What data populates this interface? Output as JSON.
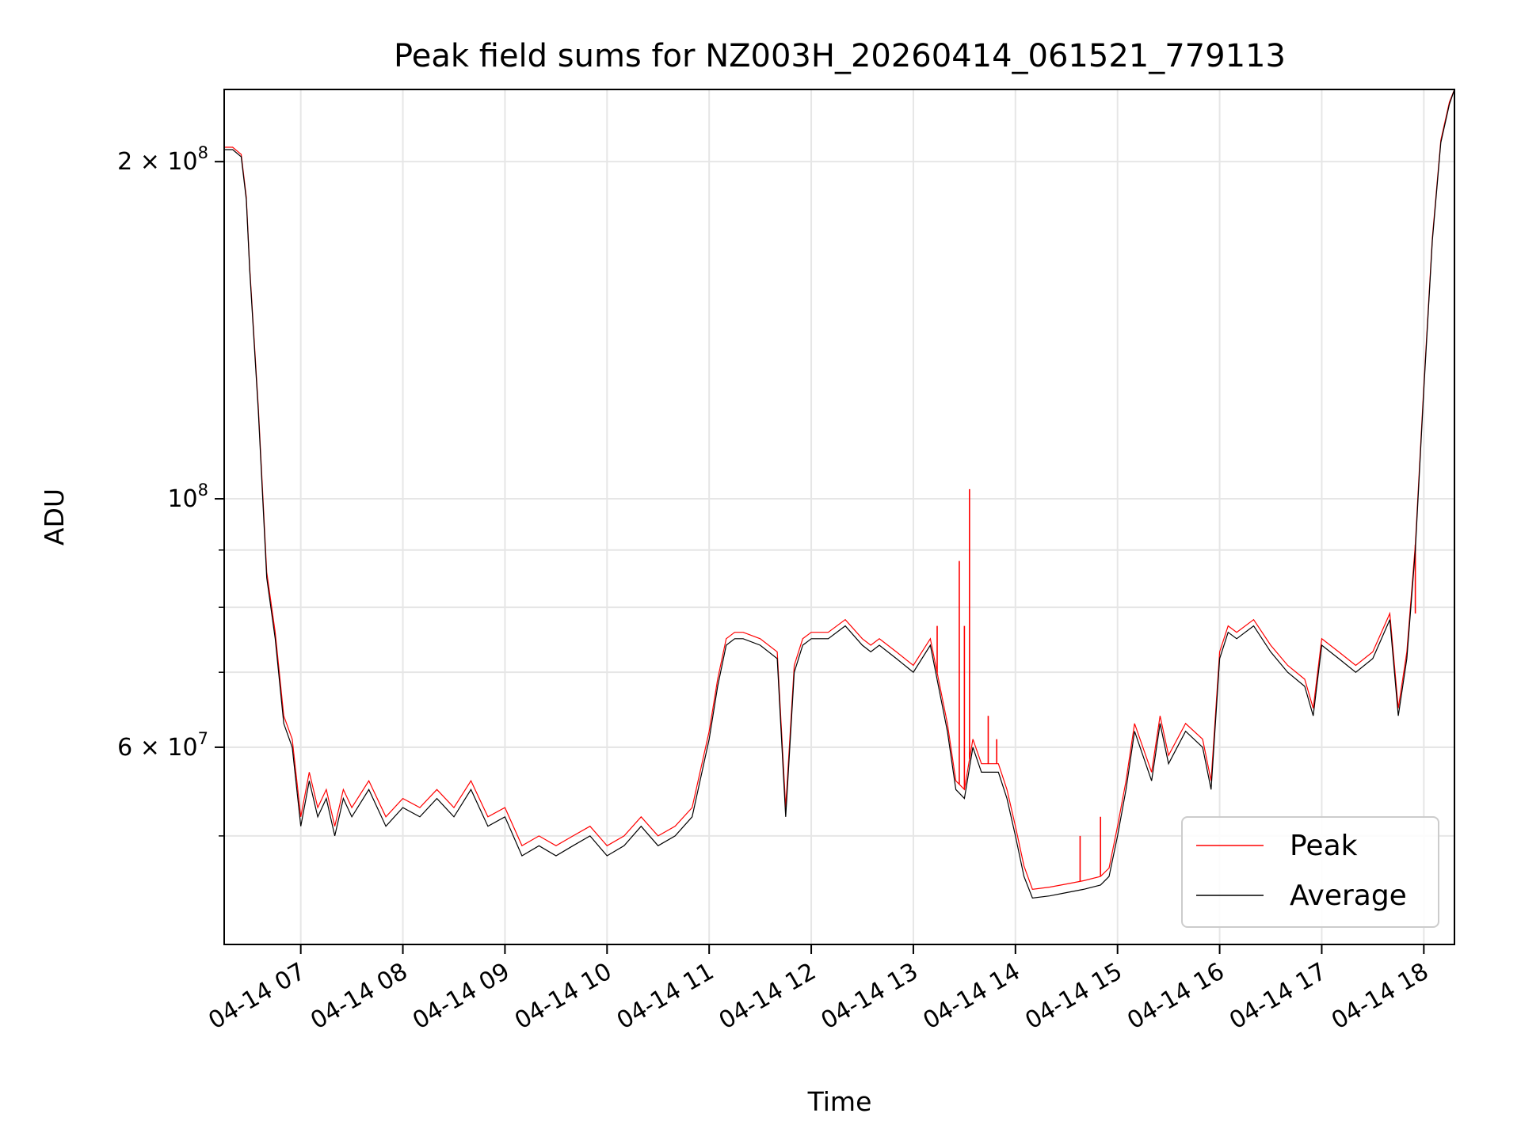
{
  "chart_data": {
    "type": "line",
    "title": "Peak field sums for NZ003H_20260414_061521_779113",
    "xlabel": "Time",
    "ylabel": "ADU",
    "yscale": "log",
    "ylim": [
      40000000,
      232000000
    ],
    "xlim": [
      "04-14 06:15",
      "04-14 18:18"
    ],
    "grid": true,
    "legend_position": "lower-right",
    "x_tick_labels": [
      "04-14 07",
      "04-14 08",
      "04-14 09",
      "04-14 10",
      "04-14 11",
      "04-14 12",
      "04-14 13",
      "04-14 14",
      "04-14 15",
      "04-14 16",
      "04-14 17",
      "04-14 18"
    ],
    "y_tick_labels": [
      {
        "value": 200000000,
        "base": "2 × 10",
        "exp": "8"
      },
      {
        "value": 100000000,
        "base": "10",
        "exp": "8"
      },
      {
        "value": 60000000,
        "base": "6 × 10",
        "exp": "7"
      }
    ],
    "x": [
      "06:15",
      "06:20",
      "06:25",
      "06:28",
      "06:30",
      "06:35",
      "06:40",
      "06:45",
      "06:50",
      "06:55",
      "07:00",
      "07:05",
      "07:10",
      "07:15",
      "07:20",
      "07:25",
      "07:30",
      "07:40",
      "07:50",
      "08:00",
      "08:10",
      "08:20",
      "08:30",
      "08:40",
      "08:50",
      "09:00",
      "09:10",
      "09:20",
      "09:30",
      "09:40",
      "09:50",
      "10:00",
      "10:10",
      "10:20",
      "10:30",
      "10:40",
      "10:50",
      "11:00",
      "11:05",
      "11:10",
      "11:15",
      "11:20",
      "11:30",
      "11:40",
      "11:45",
      "11:50",
      "11:55",
      "12:00",
      "12:10",
      "12:20",
      "12:30",
      "12:35",
      "12:40",
      "12:50",
      "13:00",
      "13:10",
      "13:20",
      "13:25",
      "13:30",
      "13:35",
      "13:40",
      "13:50",
      "13:55",
      "14:00",
      "14:05",
      "14:10",
      "14:20",
      "14:30",
      "14:40",
      "14:50",
      "14:55",
      "15:00",
      "15:05",
      "15:10",
      "15:20",
      "15:25",
      "15:30",
      "15:40",
      "15:50",
      "15:55",
      "16:00",
      "16:05",
      "16:10",
      "16:20",
      "16:30",
      "16:40",
      "16:50",
      "16:55",
      "17:00",
      "17:10",
      "17:20",
      "17:30",
      "17:40",
      "17:45",
      "17:50",
      "17:55",
      "18:00",
      "18:05",
      "18:10",
      "18:15",
      "18:18"
    ],
    "series": [
      {
        "name": "Average",
        "color": "#000000",
        "values": [
          205000000,
          205000000,
          202000000,
          185000000,
          160000000,
          120000000,
          85000000,
          75000000,
          63000000,
          60000000,
          51000000,
          56000000,
          52000000,
          54000000,
          50000000,
          54000000,
          52000000,
          55000000,
          51000000,
          53000000,
          52000000,
          54000000,
          52000000,
          55000000,
          51000000,
          52000000,
          48000000,
          49000000,
          48000000,
          49000000,
          50000000,
          48000000,
          49000000,
          51000000,
          49000000,
          50000000,
          52000000,
          61000000,
          68000000,
          74000000,
          75000000,
          75000000,
          74000000,
          72000000,
          52000000,
          70000000,
          74000000,
          75000000,
          75000000,
          77000000,
          74000000,
          73000000,
          74000000,
          72000000,
          70000000,
          74000000,
          62000000,
          55000000,
          54000000,
          60000000,
          57000000,
          57000000,
          54000000,
          50000000,
          46000000,
          44000000,
          44200000,
          44500000,
          44800000,
          45200000,
          46000000,
          50000000,
          55000000,
          62000000,
          56000000,
          63000000,
          58000000,
          62000000,
          60000000,
          55000000,
          72000000,
          76000000,
          75000000,
          77000000,
          73000000,
          70000000,
          68000000,
          64000000,
          74000000,
          72000000,
          70000000,
          72000000,
          78000000,
          64000000,
          72000000,
          90000000,
          125000000,
          170000000,
          208000000,
          225000000,
          232000000
        ]
      },
      {
        "name": "Peak",
        "color": "#ff0000",
        "values": [
          206000000,
          206000000,
          203000000,
          186000000,
          161000000,
          121000000,
          86000000,
          76000000,
          64000000,
          61000000,
          52000000,
          57000000,
          53000000,
          55000000,
          51000000,
          55000000,
          53000000,
          56000000,
          52000000,
          54000000,
          53000000,
          55000000,
          53000000,
          56000000,
          52000000,
          53000000,
          49000000,
          50000000,
          49000000,
          50000000,
          51000000,
          49000000,
          50000000,
          52000000,
          50000000,
          51000000,
          53000000,
          62000000,
          69000000,
          75000000,
          76000000,
          76000000,
          75000000,
          73000000,
          53000000,
          71000000,
          75000000,
          76000000,
          76000000,
          78000000,
          75000000,
          74000000,
          75000000,
          73000000,
          71000000,
          75000000,
          63000000,
          56000000,
          55000000,
          61000000,
          58000000,
          58000000,
          55000000,
          51000000,
          47000000,
          44800000,
          45000000,
          45300000,
          45600000,
          46000000,
          46800000,
          51000000,
          56000000,
          63000000,
          57000000,
          64000000,
          59000000,
          63000000,
          61000000,
          56000000,
          73000000,
          77000000,
          76000000,
          78000000,
          74000000,
          71000000,
          69000000,
          65000000,
          75000000,
          73000000,
          71000000,
          73000000,
          79000000,
          65000000,
          73000000,
          91000000,
          126000000,
          171000000,
          209000000,
          226000000,
          232000000
        ]
      }
    ],
    "peak_spikes": [
      {
        "x": "13:14",
        "y": 77000000
      },
      {
        "x": "13:27",
        "y": 88000000
      },
      {
        "x": "13:30",
        "y": 77000000
      },
      {
        "x": "13:33",
        "y": 102000000
      },
      {
        "x": "13:44",
        "y": 64000000
      },
      {
        "x": "13:49",
        "y": 61000000
      },
      {
        "x": "14:38",
        "y": 50000000
      },
      {
        "x": "14:50",
        "y": 52000000
      },
      {
        "x": "17:55",
        "y": 79000000
      }
    ]
  }
}
